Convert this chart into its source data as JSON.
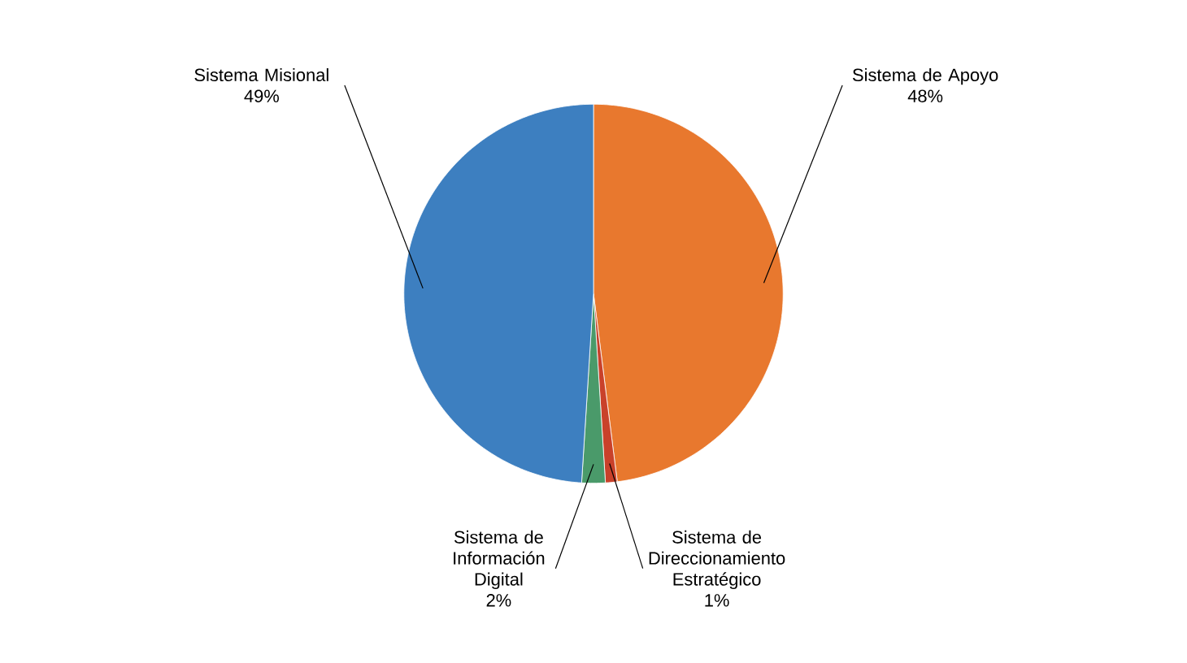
{
  "chart_data": {
    "type": "pie",
    "categories": [
      "Sistema de Apoyo",
      "Sistema de Direccionamiento Estratégico",
      "Sistema de Información Digital",
      "Sistema Misional"
    ],
    "values": [
      48,
      1,
      2,
      49
    ],
    "value_labels": [
      "48%",
      "1%",
      "2%",
      "49%"
    ],
    "colors": [
      "#e8782e",
      "#c9412a",
      "#4a9a6a",
      "#3d7fc0"
    ]
  }
}
